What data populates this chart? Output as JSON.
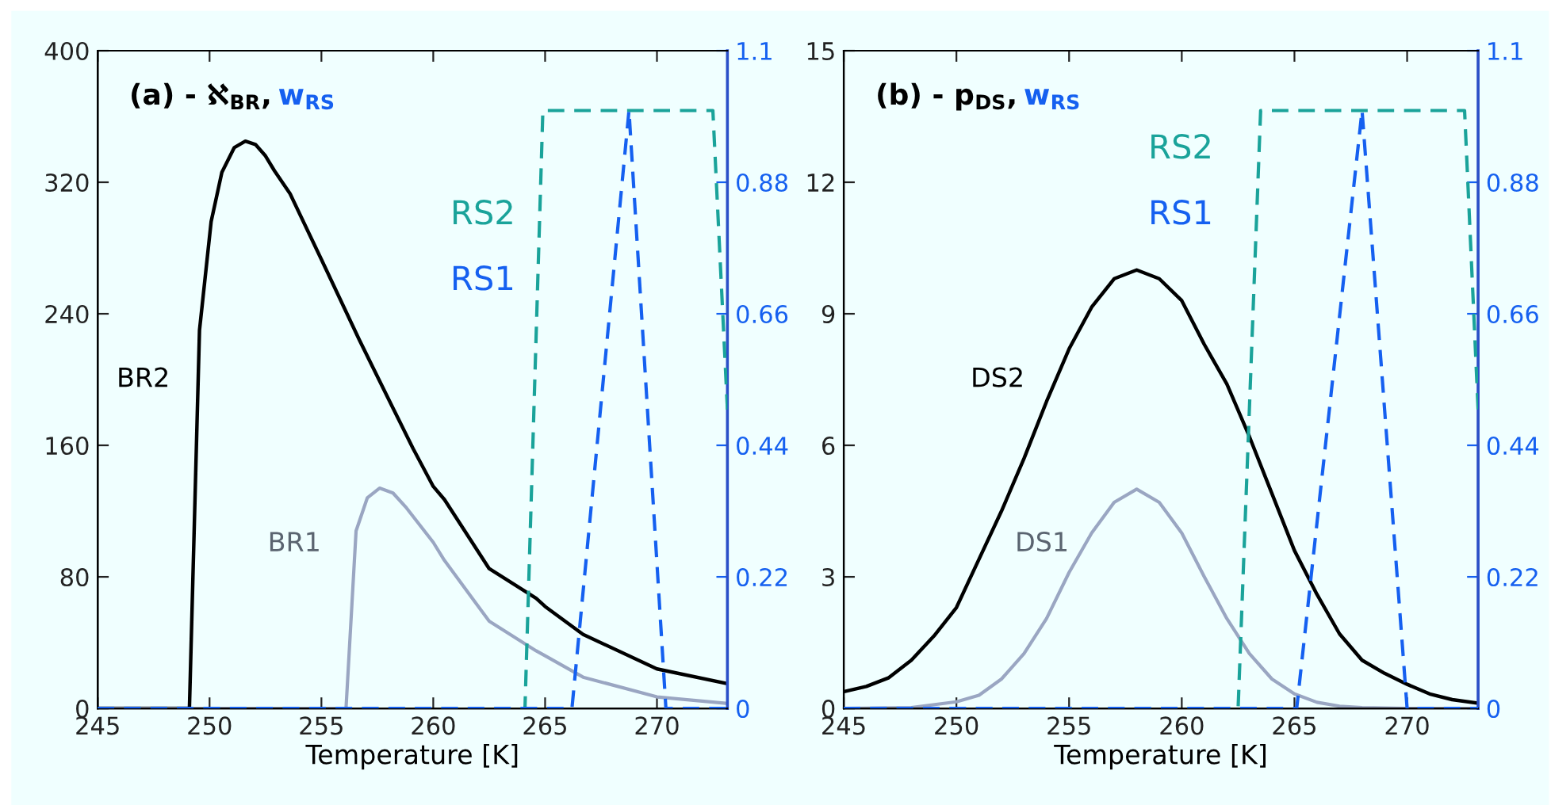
{
  "chart_data": [
    {
      "type": "line",
      "title": "(a) - ℵ$_{BR}$, w$_{RS}$",
      "xlabel": "Temperature [K]",
      "xlim": [
        245,
        273.15
      ],
      "xticks": [
        245,
        250,
        255,
        260,
        265,
        270
      ],
      "ylim": [
        0,
        400
      ],
      "yticks": [
        0,
        80,
        160,
        240,
        320,
        400
      ],
      "y2lim": [
        0,
        1.1
      ],
      "y2ticks": [
        0,
        0.22,
        0.44,
        0.66,
        0.88,
        1.1
      ],
      "grid": false,
      "legend": false,
      "marker": "none",
      "series": [
        {
          "name": "BR2",
          "color": "#000000",
          "line_style": "solid",
          "x": [
            245,
            249.1,
            249.55,
            250.07,
            250.55,
            251.1,
            251.6,
            252.05,
            252.5,
            252.9,
            253.6,
            255,
            256.7,
            258.15,
            259.1,
            260,
            260.5,
            262.5,
            264.6,
            265,
            266.7,
            270,
            273.15
          ],
          "values": [
            0,
            0,
            230,
            296,
            326,
            341,
            345,
            343,
            336,
            327,
            313,
            273,
            224,
            184,
            158,
            135,
            127,
            85,
            67,
            62,
            45,
            24,
            15
          ]
        },
        {
          "name": "BR1",
          "color": "#9aa6c2",
          "line_style": "solid",
          "x": [
            245,
            256.1,
            256.55,
            257.05,
            257.6,
            258.2,
            258.8,
            260,
            260.5,
            262.5,
            264.6,
            265,
            266.7,
            270,
            273.15
          ],
          "values": [
            0,
            0,
            108,
            128,
            134,
            131,
            122,
            101,
            90,
            53,
            35,
            32,
            19,
            7,
            3
          ]
        },
        {
          "name": "RS2",
          "color": "#1aa39a",
          "line_style": "dashed",
          "axis": "y2",
          "x": [
            245,
            264.1,
            264.9,
            272.5,
            273.15
          ],
          "values": [
            0,
            0,
            1,
            1,
            0.5
          ]
        },
        {
          "name": "RS1",
          "color": "#1560f0",
          "line_style": "dashed",
          "axis": "y2",
          "x": [
            245,
            266.2,
            268.75,
            270.4,
            273.15
          ],
          "values": [
            0,
            0,
            1,
            0,
            0
          ]
        }
      ]
    },
    {
      "type": "line",
      "title": "(b) - p$_{DS}$, w$_{RS}$",
      "xlabel": "Temperature [K]",
      "xlim": [
        245,
        273.15
      ],
      "xticks": [
        245,
        250,
        255,
        260,
        265,
        270
      ],
      "ylim": [
        0,
        15
      ],
      "yticks": [
        0,
        3,
        6,
        9,
        12,
        15
      ],
      "y2lim": [
        0,
        1.1
      ],
      "y2ticks": [
        0,
        0.22,
        0.44,
        0.66,
        0.88,
        1.1
      ],
      "grid": false,
      "legend": false,
      "marker": "none",
      "series": [
        {
          "name": "DS2",
          "color": "#000000",
          "line_style": "solid",
          "x": [
            245,
            246,
            247,
            248,
            249,
            250,
            251,
            252,
            253,
            254,
            255,
            256,
            257,
            258,
            259,
            260,
            261,
            262,
            263,
            264,
            265,
            266,
            267,
            268,
            269,
            270,
            271,
            272,
            273.15
          ],
          "values": [
            0.38,
            0.5,
            0.7,
            1.1,
            1.65,
            2.3,
            3.4,
            4.5,
            5.7,
            7.0,
            8.2,
            9.15,
            9.8,
            10.0,
            9.8,
            9.3,
            8.3,
            7.4,
            6.2,
            4.9,
            3.6,
            2.6,
            1.7,
            1.1,
            0.8,
            0.55,
            0.33,
            0.2,
            0.12
          ]
        },
        {
          "name": "DS1",
          "color": "#9aa6c2",
          "line_style": "solid",
          "x": [
            245,
            248,
            250,
            251,
            252,
            253,
            254,
            255,
            256,
            257,
            258,
            259,
            260,
            261,
            262,
            263,
            264,
            265,
            266,
            267,
            268,
            270,
            273.15
          ],
          "values": [
            0,
            0.02,
            0.15,
            0.3,
            0.67,
            1.25,
            2.05,
            3.1,
            4.0,
            4.7,
            5.0,
            4.7,
            4.0,
            3.0,
            2.05,
            1.25,
            0.67,
            0.33,
            0.14,
            0.05,
            0.02,
            0,
            0
          ]
        },
        {
          "name": "RS2",
          "color": "#1aa39a",
          "line_style": "dashed",
          "axis": "y2",
          "x": [
            245,
            262.5,
            263.5,
            272.55,
            273.15
          ],
          "values": [
            0,
            0,
            1,
            1,
            0.5
          ]
        },
        {
          "name": "RS1",
          "color": "#1560f0",
          "line_style": "dashed",
          "axis": "y2",
          "x": [
            245,
            265.1,
            268.0,
            270.0,
            273.15
          ],
          "values": [
            0,
            0,
            1,
            0,
            0
          ]
        }
      ]
    }
  ]
}
